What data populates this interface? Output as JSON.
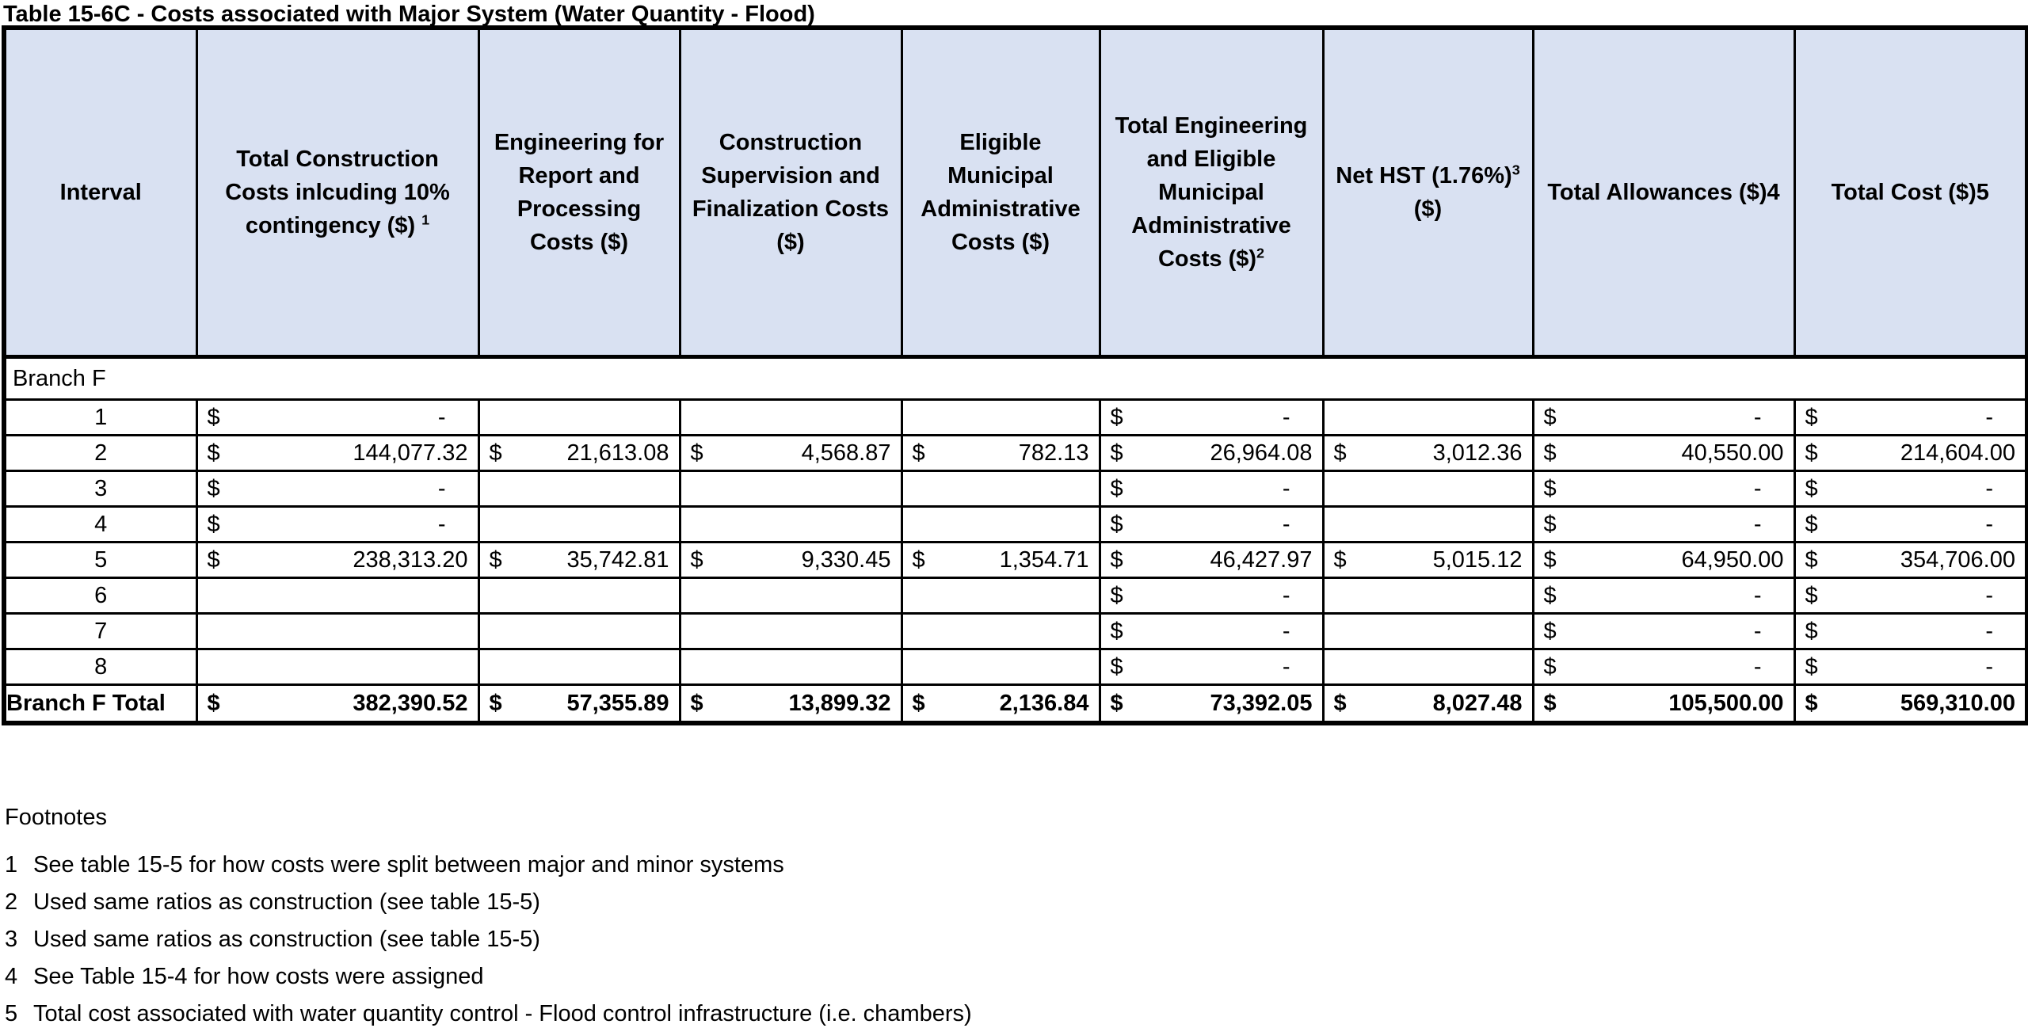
{
  "title": "Table 15-6C - Costs associated with Major System (Water Quantity - Flood)",
  "colors": {
    "header_fill": "#d9e1f2",
    "border": "#000000",
    "background": "#ffffff",
    "text": "#000000"
  },
  "table": {
    "currency_symbol": "$",
    "zero_display": "-",
    "columns": [
      {
        "key": "interval",
        "label": "Interval",
        "sup": "",
        "tail": ""
      },
      {
        "key": "total-construction-costs",
        "label": "Total Construction Costs inlcuding 10% contingency ($) ",
        "sup": "1",
        "tail": ""
      },
      {
        "key": "engineering-report-processing-costs",
        "label": "Engineering for Report and Processing Costs ($)",
        "sup": "",
        "tail": ""
      },
      {
        "key": "construction-supervision-finalization-costs",
        "label": "Construction Supervision and Finalization Costs ($)",
        "sup": "",
        "tail": ""
      },
      {
        "key": "eligible-municipal-admin-costs",
        "label": "Eligible Municipal Administrative Costs ($)",
        "sup": "",
        "tail": ""
      },
      {
        "key": "total-engineering-municipal-admin-costs",
        "label": "Total Engineering and Eligible Municipal Administrative Costs ($)",
        "sup": "2",
        "tail": ""
      },
      {
        "key": "net-hst",
        "label": "Net HST (1.76%)",
        "sup": "3",
        "tail": "($)"
      },
      {
        "key": "total-allowances",
        "label": "Total Allowances ($)4",
        "sup": "",
        "tail": ""
      },
      {
        "key": "total-cost",
        "label": "Total Cost ($)5",
        "sup": "",
        "tail": ""
      }
    ],
    "rows": [
      {
        "type": "section",
        "label": "Branch F"
      },
      {
        "type": "data",
        "interval": "1",
        "cells": [
          "-",
          "",
          "",
          "",
          "-",
          "",
          "-",
          "-"
        ]
      },
      {
        "type": "data",
        "interval": "2",
        "cells": [
          "144,077.32",
          "21,613.08",
          "4,568.87",
          "782.13",
          "26,964.08",
          "3,012.36",
          "40,550.00",
          "214,604.00"
        ]
      },
      {
        "type": "data",
        "interval": "3",
        "cells": [
          "-",
          "",
          "",
          "",
          "-",
          "",
          "-",
          "-"
        ]
      },
      {
        "type": "data",
        "interval": "4",
        "cells": [
          "-",
          "",
          "",
          "",
          "-",
          "",
          "-",
          "-"
        ]
      },
      {
        "type": "data",
        "interval": "5",
        "cells": [
          "238,313.20",
          "35,742.81",
          "9,330.45",
          "1,354.71",
          "46,427.97",
          "5,015.12",
          "64,950.00",
          "354,706.00"
        ]
      },
      {
        "type": "data",
        "interval": "6",
        "cells": [
          "",
          "",
          "",
          "",
          "-",
          "",
          "-",
          "-"
        ]
      },
      {
        "type": "data",
        "interval": "7",
        "cells": [
          "",
          "",
          "",
          "",
          "-",
          "",
          "-",
          "-"
        ]
      },
      {
        "type": "data",
        "interval": "8",
        "cells": [
          "",
          "",
          "",
          "",
          "-",
          "",
          "-",
          "-"
        ]
      },
      {
        "type": "total",
        "label": "Branch F Total",
        "cells": [
          "382,390.52",
          "57,355.89",
          "13,899.32",
          "2,136.84",
          "73,392.05",
          "8,027.48",
          "105,500.00",
          "569,310.00"
        ]
      }
    ]
  },
  "footnotes": {
    "heading": "Footnotes",
    "items": [
      {
        "num": "1",
        "text": "See table 15-5 for how costs were split between major and minor systems"
      },
      {
        "num": "2",
        "text": "Used same ratios as construction (see table 15-5)"
      },
      {
        "num": "3",
        "text": "Used same ratios as construction (see table 15-5)"
      },
      {
        "num": "4",
        "text": "See Table 15-4 for how costs were assigned"
      },
      {
        "num": "5",
        "text": "Total cost associated with water quantity control - Flood control infrastructure (i.e. chambers)"
      }
    ]
  }
}
